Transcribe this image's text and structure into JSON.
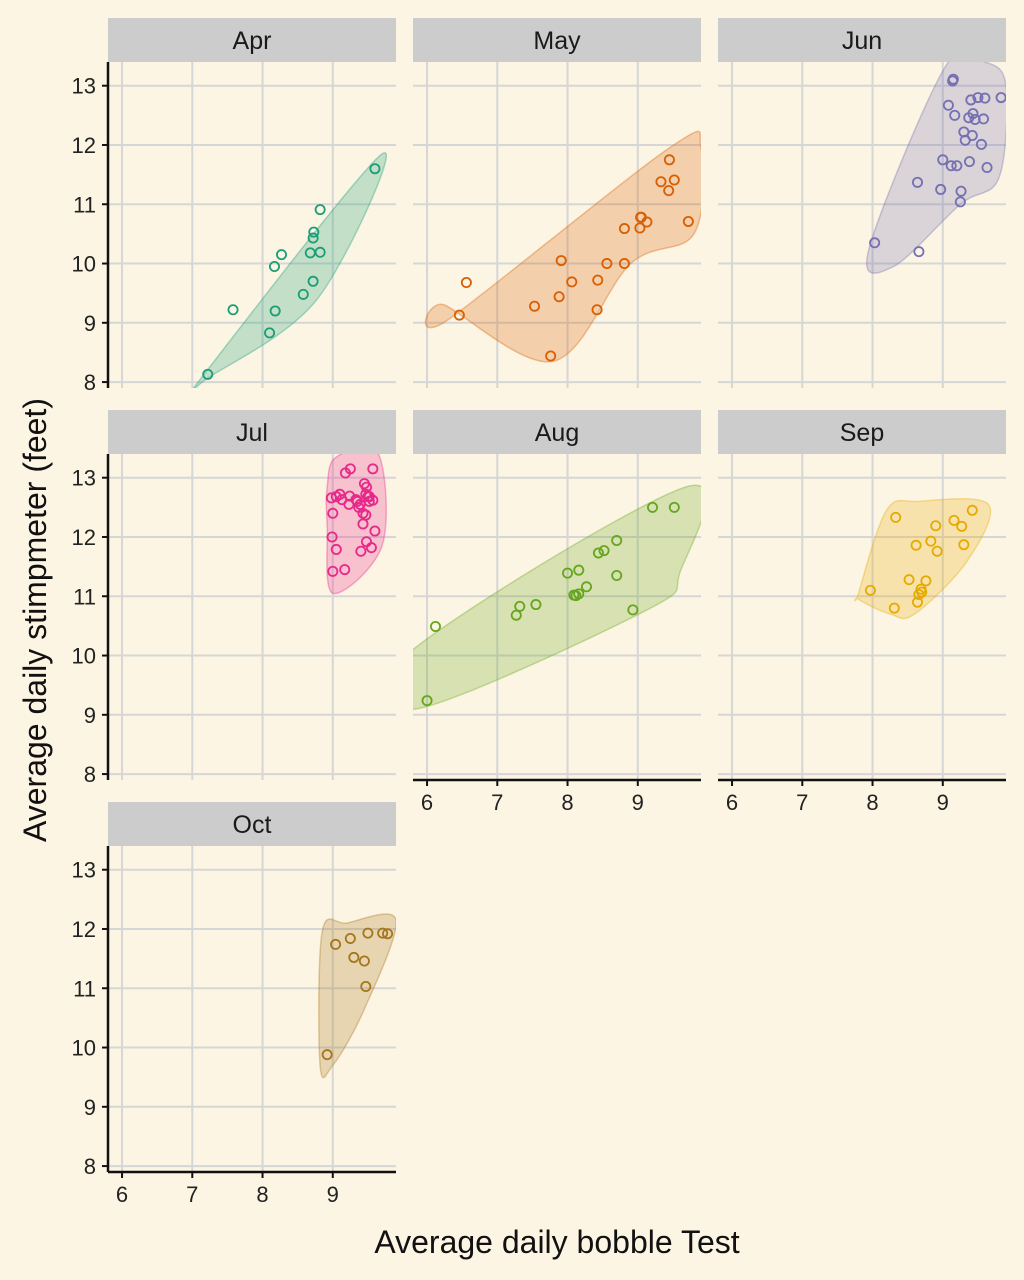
{
  "chart_data": {
    "type": "scatter",
    "xlabel": "Average daily bobble Test",
    "ylabel": "Average daily stimpmeter (feet)",
    "xlim": [
      5.8,
      9.9
    ],
    "ylim": [
      7.9,
      13.4
    ],
    "x_ticks": [
      6,
      7,
      8,
      9
    ],
    "y_ticks": [
      8,
      9,
      10,
      11,
      12,
      13
    ],
    "grid": true,
    "facets": [
      {
        "label": "Apr",
        "color": "#1b9e77",
        "points": [
          [
            7.22,
            8.13
          ],
          [
            7.58,
            9.22
          ],
          [
            8.1,
            8.83
          ],
          [
            8.18,
            9.2
          ],
          [
            8.17,
            9.95
          ],
          [
            8.27,
            10.15
          ],
          [
            8.58,
            9.48
          ],
          [
            8.68,
            10.18
          ],
          [
            8.72,
            9.7
          ],
          [
            8.72,
            10.43
          ],
          [
            8.73,
            10.53
          ],
          [
            8.82,
            10.19
          ],
          [
            8.82,
            10.91
          ],
          [
            9.6,
            11.6
          ]
        ],
        "hull": [
          [
            7.05,
            7.95
          ],
          [
            9.7,
            11.85
          ],
          [
            8.78,
            9.4
          ],
          [
            7.2,
            8.05
          ]
        ]
      },
      {
        "label": "May",
        "color": "#d95f02",
        "points": [
          [
            6.46,
            9.13
          ],
          [
            6.56,
            9.68
          ],
          [
            7.53,
            9.28
          ],
          [
            7.76,
            8.44
          ],
          [
            7.88,
            9.44
          ],
          [
            7.91,
            10.05
          ],
          [
            8.06,
            9.69
          ],
          [
            8.42,
            9.22
          ],
          [
            8.43,
            9.72
          ],
          [
            8.56,
            10.0
          ],
          [
            8.81,
            10.0
          ],
          [
            8.81,
            10.59
          ],
          [
            9.03,
            10.6
          ],
          [
            9.04,
            10.78
          ],
          [
            9.05,
            10.78
          ],
          [
            9.13,
            10.7
          ],
          [
            9.33,
            11.38
          ],
          [
            9.44,
            11.23
          ],
          [
            9.45,
            11.75
          ],
          [
            9.52,
            11.41
          ],
          [
            9.72,
            10.71
          ]
        ],
        "hull": [
          [
            6.25,
            9.3
          ],
          [
            7.8,
            8.35
          ],
          [
            8.9,
            10.0
          ],
          [
            9.8,
            10.5
          ],
          [
            9.9,
            11.95
          ],
          [
            9.45,
            11.95
          ],
          [
            6.3,
            9.05
          ]
        ]
      },
      {
        "label": "Jun",
        "color": "#7570b3",
        "points": [
          [
            8.03,
            10.35
          ],
          [
            8.64,
            11.37
          ],
          [
            8.66,
            10.2
          ],
          [
            8.97,
            11.25
          ],
          [
            9.0,
            11.75
          ],
          [
            9.08,
            12.67
          ],
          [
            9.12,
            11.65
          ],
          [
            9.14,
            13.08
          ],
          [
            9.17,
            12.5
          ],
          [
            9.15,
            13.11
          ],
          [
            9.2,
            11.65
          ],
          [
            9.25,
            11.04
          ],
          [
            9.26,
            11.22
          ],
          [
            9.3,
            12.22
          ],
          [
            9.32,
            12.08
          ],
          [
            9.37,
            12.46
          ],
          [
            9.38,
            11.72
          ],
          [
            9.4,
            12.76
          ],
          [
            9.42,
            12.16
          ],
          [
            9.43,
            12.53
          ],
          [
            9.46,
            12.43
          ],
          [
            9.5,
            12.8
          ],
          [
            9.55,
            12.01
          ],
          [
            9.58,
            12.44
          ],
          [
            9.6,
            12.79
          ],
          [
            9.63,
            11.62
          ],
          [
            9.83,
            12.8
          ]
        ],
        "hull": [
          [
            7.95,
            10.25
          ],
          [
            9.05,
            13.35
          ],
          [
            9.6,
            13.4
          ],
          [
            9.9,
            13.0
          ],
          [
            9.8,
            11.45
          ],
          [
            9.25,
            11.0
          ],
          [
            8.3,
            9.95
          ]
        ]
      },
      {
        "label": "Jul",
        "color": "#e7298a",
        "points": [
          [
            8.98,
            12.66
          ],
          [
            8.99,
            12.0
          ],
          [
            9.0,
            12.4
          ],
          [
            9.0,
            11.42
          ],
          [
            9.05,
            12.68
          ],
          [
            9.05,
            11.79
          ],
          [
            9.1,
            12.72
          ],
          [
            9.13,
            12.63
          ],
          [
            9.17,
            11.45
          ],
          [
            9.18,
            13.08
          ],
          [
            9.23,
            12.55
          ],
          [
            9.24,
            12.69
          ],
          [
            9.25,
            13.15
          ],
          [
            9.33,
            12.63
          ],
          [
            9.35,
            12.6
          ],
          [
            9.37,
            12.5
          ],
          [
            9.39,
            12.55
          ],
          [
            9.4,
            11.76
          ],
          [
            9.43,
            12.4
          ],
          [
            9.43,
            12.22
          ],
          [
            9.45,
            12.9
          ],
          [
            9.47,
            12.37
          ],
          [
            9.47,
            12.72
          ],
          [
            9.48,
            11.92
          ],
          [
            9.48,
            12.84
          ],
          [
            9.5,
            12.68
          ],
          [
            9.52,
            12.68
          ],
          [
            9.52,
            12.6
          ],
          [
            9.55,
            11.82
          ],
          [
            9.57,
            13.15
          ],
          [
            9.57,
            12.62
          ],
          [
            9.6,
            12.1
          ]
        ],
        "hull": [
          [
            8.92,
            12.85
          ],
          [
            9.05,
            13.35
          ],
          [
            9.65,
            13.4
          ],
          [
            9.7,
            11.85
          ],
          [
            9.0,
            11.05
          ],
          [
            8.92,
            12.2
          ]
        ]
      },
      {
        "label": "Aug",
        "color": "#66a61e",
        "points": [
          [
            6.0,
            9.24
          ],
          [
            6.12,
            10.49
          ],
          [
            7.27,
            10.68
          ],
          [
            7.32,
            10.83
          ],
          [
            7.55,
            10.86
          ],
          [
            8.0,
            11.39
          ],
          [
            8.09,
            11.02
          ],
          [
            8.12,
            11.01
          ],
          [
            8.16,
            11.04
          ],
          [
            8.16,
            11.44
          ],
          [
            8.27,
            11.16
          ],
          [
            8.44,
            11.73
          ],
          [
            8.52,
            11.77
          ],
          [
            8.7,
            11.35
          ],
          [
            8.7,
            11.94
          ],
          [
            8.93,
            10.77
          ],
          [
            9.21,
            12.5
          ],
          [
            9.52,
            12.5
          ]
        ],
        "hull": [
          [
            5.85,
            9.1
          ],
          [
            9.1,
            10.75
          ],
          [
            9.6,
            11.4
          ],
          [
            9.7,
            12.85
          ],
          [
            5.8,
            10.1
          ]
        ]
      },
      {
        "label": "Sep",
        "color": "#e6ab02",
        "points": [
          [
            7.97,
            11.1
          ],
          [
            8.31,
            10.8
          ],
          [
            8.33,
            12.33
          ],
          [
            8.52,
            11.28
          ],
          [
            8.62,
            11.86
          ],
          [
            8.64,
            10.9
          ],
          [
            8.66,
            11.03
          ],
          [
            8.69,
            11.12
          ],
          [
            8.7,
            11.07
          ],
          [
            8.76,
            11.26
          ],
          [
            8.83,
            11.93
          ],
          [
            8.9,
            12.19
          ],
          [
            8.92,
            11.76
          ],
          [
            9.16,
            12.28
          ],
          [
            9.27,
            12.18
          ],
          [
            9.3,
            11.87
          ],
          [
            9.42,
            12.45
          ]
        ],
        "hull": [
          [
            7.8,
            11.05
          ],
          [
            8.2,
            12.45
          ],
          [
            8.65,
            12.6
          ],
          [
            9.65,
            12.55
          ],
          [
            9.35,
            11.6
          ],
          [
            8.6,
            10.7
          ],
          [
            8.25,
            10.7
          ],
          [
            7.8,
            10.95
          ]
        ]
      },
      {
        "label": "Oct",
        "color": "#a6761d",
        "points": [
          [
            8.92,
            9.88
          ],
          [
            9.04,
            11.74
          ],
          [
            9.25,
            11.84
          ],
          [
            9.3,
            11.52
          ],
          [
            9.45,
            11.46
          ],
          [
            9.47,
            11.03
          ],
          [
            9.5,
            11.93
          ],
          [
            9.71,
            11.93
          ],
          [
            9.78,
            11.92
          ]
        ],
        "hull": [
          [
            8.82,
            9.7
          ],
          [
            8.85,
            11.95
          ],
          [
            9.2,
            12.1
          ],
          [
            9.9,
            12.15
          ],
          [
            9.45,
            10.65
          ],
          [
            9.0,
            9.7
          ]
        ]
      }
    ]
  }
}
